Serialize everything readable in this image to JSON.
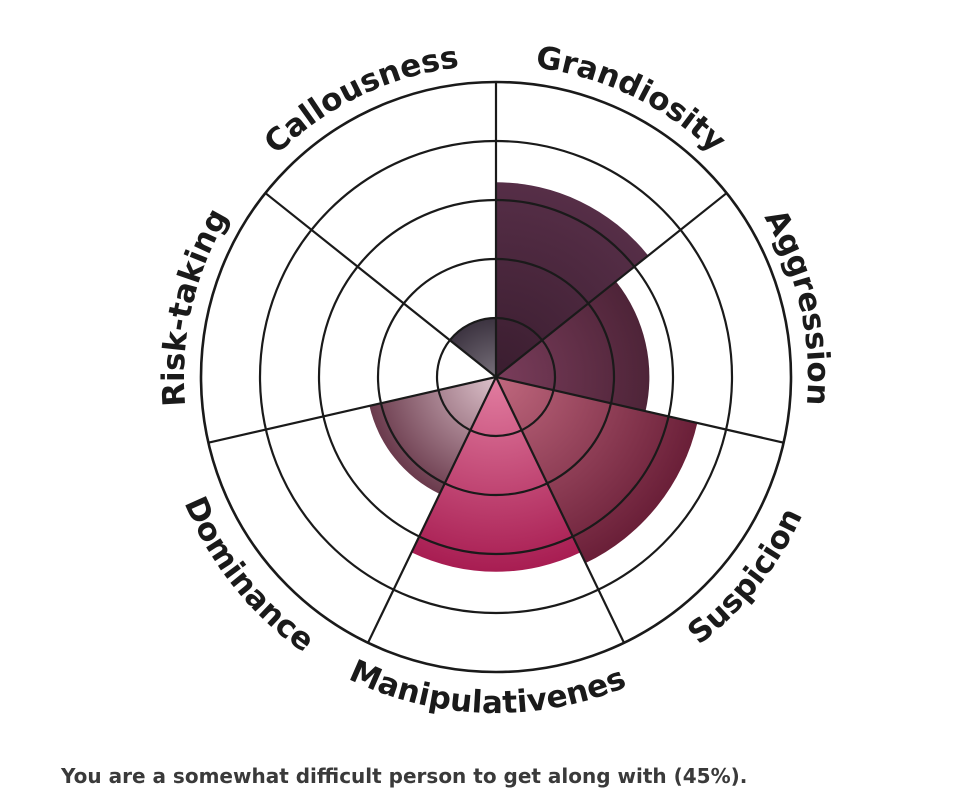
{
  "chart_data": {
    "type": "radial-bar",
    "title": "",
    "scale_max": 5,
    "rings": 5,
    "categories": [
      "Grandiosity",
      "Aggression",
      "Suspicion",
      "Manipulativeness",
      "Dominance",
      "Risk-taking",
      "Callousness"
    ],
    "values": [
      3.3,
      2.6,
      3.5,
      3.3,
      2.2,
      0,
      1
    ],
    "colors": {
      "Grandiosity": [
        "#3a1d2f",
        "#562e47"
      ],
      "Aggression": [
        "#7a3d5b",
        "#4e2438"
      ],
      "Suspicion": [
        "#c0687e",
        "#6a1f38"
      ],
      "Manipulativeness": [
        "#e27ea1",
        "#a81d52"
      ],
      "Dominance": [
        "#ddc2cb",
        "#6a3a4c"
      ],
      "Risk-taking": [
        "#ffffff",
        "#ffffff"
      ],
      "Callousness": [
        "#77707a",
        "#3c3340"
      ]
    }
  },
  "summary": "You are a somewhat difficult person to get along with (45%)."
}
